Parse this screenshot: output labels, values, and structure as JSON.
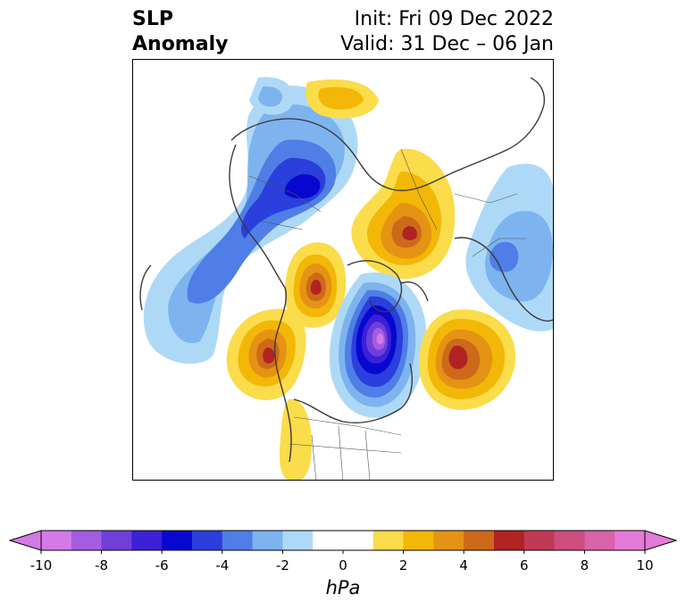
{
  "title": {
    "left_line1": "SLP",
    "left_line2": "Anomaly",
    "right_line1": "Init: Fri 09 Dec 2022",
    "right_line2": "Valid: 31 Dec – 06 Jan"
  },
  "colorbar": {
    "unit": "hPa",
    "min": -10,
    "max": 10,
    "step": 1,
    "extend": "both",
    "tick_labels": [
      "-10",
      "-8",
      "-6",
      "-4",
      "-2",
      "0",
      "2",
      "4",
      "6",
      "8",
      "10"
    ],
    "tick_values": [
      -10,
      -8,
      -6,
      -4,
      -2,
      0,
      2,
      4,
      6,
      8,
      10
    ],
    "colors": [
      "#d47ae8",
      "#a45de0",
      "#6f3fd8",
      "#3b20d6",
      "#0707cf",
      "#2a3fdb",
      "#4f7ee6",
      "#7db4ef",
      "#aed9f6",
      "#ffffff",
      "#ffffff",
      "#fbdc4a",
      "#f2b707",
      "#e49314",
      "#cc6a1a",
      "#b22222",
      "#c13a55",
      "#cd4d7f",
      "#d963a8",
      "#e47bd8"
    ],
    "min_color": "#d47ae8",
    "max_color": "#e47bd8"
  },
  "map": {
    "projection": "polar-stereographic north",
    "field": "sea level pressure anomaly"
  }
}
